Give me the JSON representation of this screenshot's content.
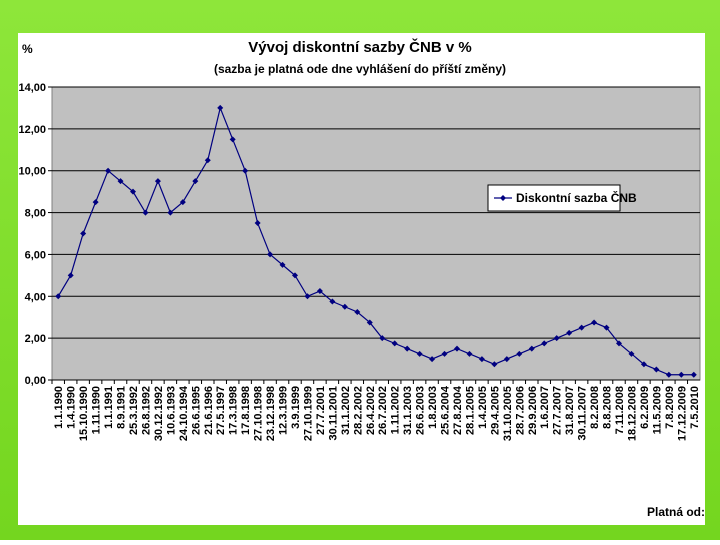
{
  "chart_data": {
    "type": "line",
    "title": "Vývoj diskontní sazby ČNB v %",
    "subtitle": "(sazba je platná ode dne vyhlášení do příští změny)",
    "y_label": "%",
    "x_label": "Platná od:",
    "categories": [
      "1.1.1990",
      "1.4.1990",
      "15.10.1990",
      "1.11.1990",
      "1.1.1991",
      "8.9.1991",
      "25.3.1992",
      "26.8.1992",
      "30.12.1992",
      "10.6.1993",
      "24.10.1994",
      "26.6.1995",
      "21.6.1996",
      "27.5.1997",
      "17.3.1998",
      "17.8.1998",
      "27.10.1998",
      "23.12.1998",
      "12.3.1999",
      "3.9.1999",
      "27.10.1999",
      "27.7.2001",
      "30.11.2001",
      "31.1.2002",
      "28.2.2002",
      "26.4.2002",
      "26.7.2002",
      "1.11.2002",
      "31.1.2003",
      "26.6.2003",
      "1.8.2003",
      "25.6.2004",
      "27.8.2004",
      "28.1.2005",
      "1.4.2005",
      "29.4.2005",
      "31.10.2005",
      "28.7.2006",
      "29.9.2006",
      "1.6.2007",
      "27.7.2007",
      "31.8.2007",
      "30.11.2007",
      "8.2.2008",
      "8.8.2008",
      "7.11.2008",
      "18.12.2008",
      "6.2.2009",
      "11.5.2009",
      "7.8.2009",
      "17.12.2009",
      "7.5.2010"
    ],
    "series": [
      {
        "name": "Diskontní sazba ČNB",
        "color": "#000080",
        "values": [
          4,
          5,
          7,
          8.5,
          10,
          9.5,
          9,
          8,
          9.5,
          8,
          8.5,
          9.5,
          10.5,
          13,
          11.5,
          10,
          7.5,
          6,
          5.5,
          5,
          4,
          4.25,
          3.75,
          3.5,
          3.25,
          2.75,
          2,
          1.75,
          1.5,
          1.25,
          1,
          1.25,
          1.5,
          1.25,
          1,
          0.75,
          1,
          1.25,
          1.5,
          1.75,
          2,
          2.25,
          2.5,
          2.75,
          2.5,
          1.75,
          1.25,
          0.75,
          0.5,
          0.25,
          0.25,
          0.25
        ]
      }
    ],
    "ylim": [
      0,
      14
    ],
    "yticks": [
      {
        "value": 0,
        "label": "0,00"
      },
      {
        "value": 2,
        "label": "2,00"
      },
      {
        "value": 4,
        "label": "4,00"
      },
      {
        "value": 6,
        "label": "6,00"
      },
      {
        "value": 8,
        "label": "8,00"
      },
      {
        "value": 10,
        "label": "10,00"
      },
      {
        "value": 12,
        "label": "12,00"
      },
      {
        "value": 14,
        "label": "14,00"
      }
    ],
    "grid": true,
    "legend": "right"
  }
}
